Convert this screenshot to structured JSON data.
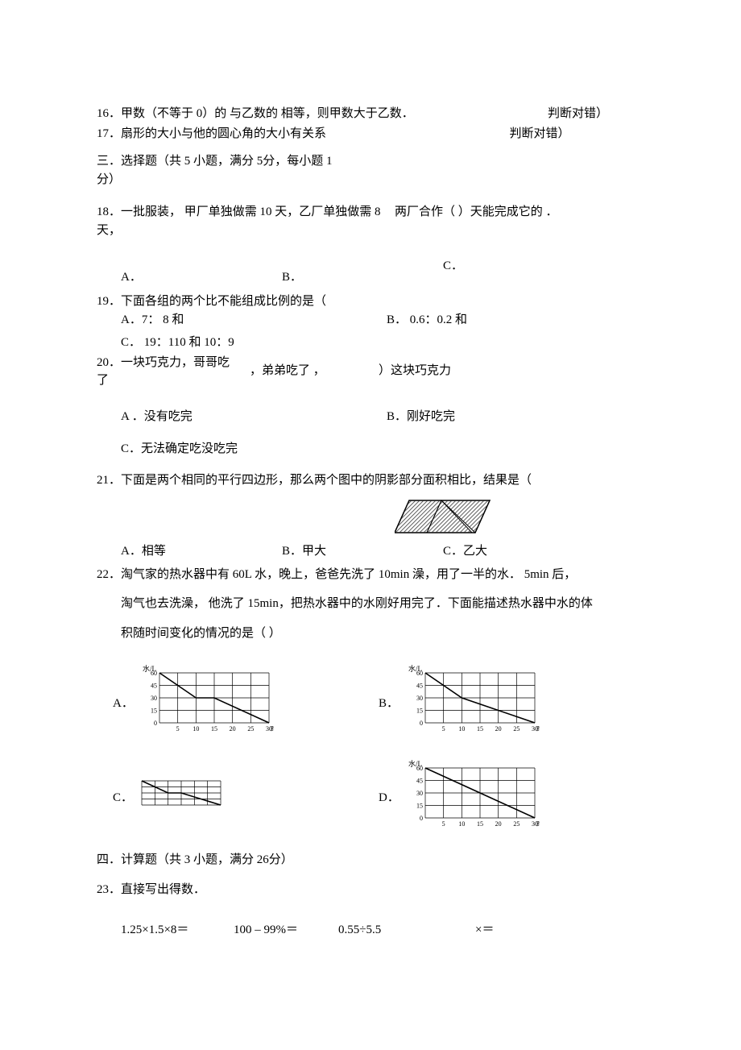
{
  "q16": {
    "text": "16．甲数（不等于 0）的 与乙数的 相等，则甲数大于乙数．",
    "judge": "判断对错）"
  },
  "q17": {
    "text": "17．扇形的大小与他的圆心角的大小有关系",
    "judge": "判断对错）"
  },
  "section3": {
    "line1": "三．选择题（共 5 小题，满分 5分，每小题 1",
    "line2": "分）"
  },
  "q18": {
    "part1": "18．一批服装， 甲厂单独做需 10 天，乙厂单独做需 8",
    "part2": "两厂合作（    ）天能完成它的 ．",
    "part3": "天，",
    "optA": "A．",
    "optB": "B．",
    "optC": "C．"
  },
  "q19": {
    "stem": "19．下面各组的两个比不能组成比例的是（",
    "optA": "A．7： 8 和",
    "optB": "B． 0.6：0.2 和",
    "optC": "C． 19：110 和 10：9"
  },
  "q20": {
    "line1a": "20．一块巧克力，哥哥吃",
    "line1b": "了",
    "mid": "，弟弟吃了 ，",
    "tail": "）这块巧克力",
    "optA": "A ．没有吃完",
    "optB": "B．刚好吃完",
    "optC": "C．无法确定吃没吃完"
  },
  "q21": {
    "stem": "21．下面是两个相同的平行四边形，那么两个图中的阴影部分面积相比，结果是（",
    "optA": "A．相等",
    "optB": "B．甲大",
    "optC": "C．乙大",
    "img": {
      "stroke": "#000000",
      "hatch": "#606060",
      "width": 120,
      "height": 48
    }
  },
  "q22": {
    "line1": "22．淘气家的热水器中有 60L 水，晚上，爸爸先洗了 10min 澡，用了一半的水． 5min 后，",
    "line2": "淘气也去洗澡， 他洗了 15min，把热水器中的水刚好用完了．下面能描述热水器中水的体",
    "line3": "积随时间变化的情况的是（  ）",
    "yLabel": "水/L",
    "xLabel": "时间/min",
    "yTicks": [
      "60",
      "45",
      "30",
      "15",
      "0"
    ],
    "xTicks": [
      "5",
      "10",
      "15",
      "20",
      "25",
      "30"
    ],
    "optA": "A．",
    "optB": "B．",
    "optC": "C．",
    "optD": "D．",
    "graphs": {
      "grid": "#000000",
      "bg": "#ffffff",
      "line": "#000000"
    }
  },
  "section4": "四．计算题（共 3 小题，满分 26分）",
  "q23": {
    "stem": "23．直接写出得数．",
    "c1": "1.25×1.5×8＝",
    "c2": "100 – 99%＝",
    "c3": "0.55÷5.5",
    "c4": "×＝"
  }
}
